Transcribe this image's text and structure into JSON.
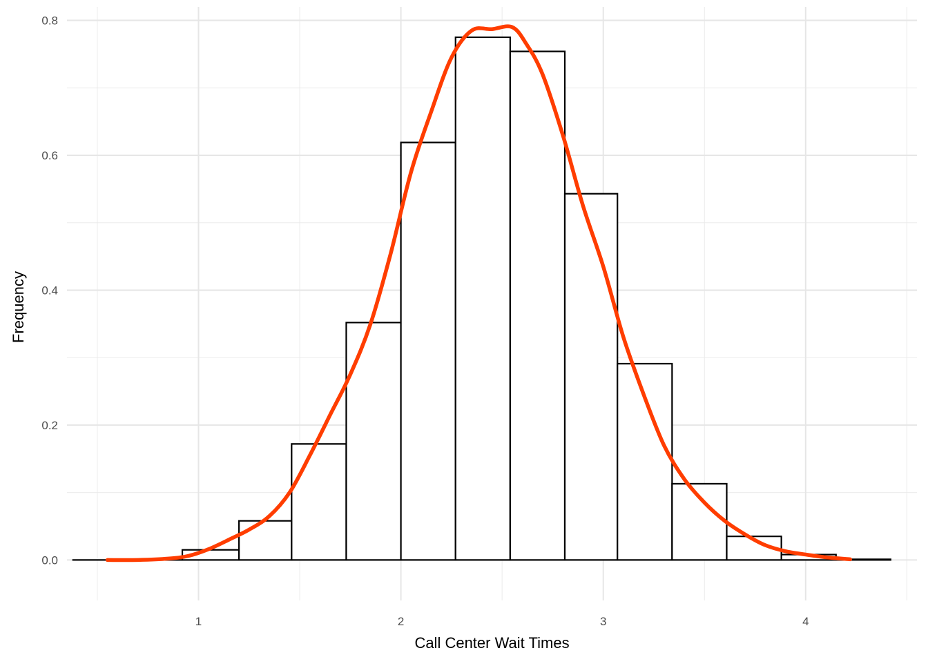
{
  "chart_data": {
    "type": "histogram",
    "xlabel": "Call Center Wait Times",
    "ylabel": "Frequency",
    "xlim": [
      0.35,
      4.55
    ],
    "ylim": [
      -0.06,
      0.82
    ],
    "x_ticks": [
      1,
      2,
      3,
      4
    ],
    "x_minor_ticks": [
      0.5,
      1.5,
      2.5,
      3.5,
      4.5
    ],
    "y_ticks": [
      0.0,
      0.2,
      0.4,
      0.6,
      0.8
    ],
    "y_minor_ticks": [
      0.1,
      0.3,
      0.5,
      0.7
    ],
    "grid": true,
    "bar_fill": "#ffffff",
    "bar_outline": "#000000",
    "density_color": "#ff3d00",
    "bins": [
      {
        "x0": 0.38,
        "x1": 0.65,
        "value": 0.0
      },
      {
        "x0": 0.65,
        "x1": 0.92,
        "value": 0.0
      },
      {
        "x0": 0.92,
        "x1": 1.2,
        "value": 0.015
      },
      {
        "x0": 1.2,
        "x1": 1.46,
        "value": 0.058
      },
      {
        "x0": 1.46,
        "x1": 1.73,
        "value": 0.172
      },
      {
        "x0": 1.73,
        "x1": 2.0,
        "value": 0.352
      },
      {
        "x0": 2.0,
        "x1": 2.27,
        "value": 0.619
      },
      {
        "x0": 2.27,
        "x1": 2.54,
        "value": 0.775
      },
      {
        "x0": 2.54,
        "x1": 2.81,
        "value": 0.754
      },
      {
        "x0": 2.81,
        "x1": 3.07,
        "value": 0.543
      },
      {
        "x0": 3.07,
        "x1": 3.34,
        "value": 0.291
      },
      {
        "x0": 3.34,
        "x1": 3.61,
        "value": 0.113
      },
      {
        "x0": 3.61,
        "x1": 3.88,
        "value": 0.035
      },
      {
        "x0": 3.88,
        "x1": 4.15,
        "value": 0.008
      },
      {
        "x0": 4.15,
        "x1": 4.42,
        "value": 0.001
      }
    ],
    "density": {
      "x": [
        0.55,
        0.7,
        0.85,
        0.95,
        1.05,
        1.15,
        1.25,
        1.35,
        1.45,
        1.55,
        1.65,
        1.75,
        1.85,
        1.95,
        2.05,
        2.15,
        2.25,
        2.35,
        2.45,
        2.55,
        2.62,
        2.7,
        2.8,
        2.9,
        3.0,
        3.1,
        3.2,
        3.3,
        3.4,
        3.5,
        3.6,
        3.7,
        3.8,
        3.9,
        4.0,
        4.1,
        4.22
      ],
      "y": [
        0.0,
        0.0,
        0.002,
        0.006,
        0.016,
        0.03,
        0.045,
        0.065,
        0.1,
        0.155,
        0.215,
        0.275,
        0.35,
        0.455,
        0.575,
        0.665,
        0.745,
        0.785,
        0.787,
        0.79,
        0.765,
        0.72,
        0.63,
        0.525,
        0.435,
        0.33,
        0.245,
        0.17,
        0.12,
        0.085,
        0.058,
        0.038,
        0.022,
        0.013,
        0.008,
        0.004,
        0.001
      ]
    }
  }
}
